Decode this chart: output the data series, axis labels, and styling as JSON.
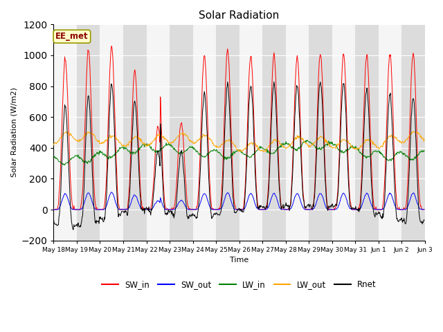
{
  "title": "Solar Radiation",
  "ylabel": "Solar Radiation (W/m2)",
  "xlabel": "Time",
  "ylim": [
    -200,
    1200
  ],
  "yticks": [
    -200,
    0,
    200,
    400,
    600,
    800,
    1000,
    1200
  ],
  "annotation_text": "EE_met",
  "annotation_color": "#8B0000",
  "annotation_bg": "#FFFFCC",
  "annotation_border": "#999900",
  "line_colors": {
    "SW_in": "red",
    "SW_out": "blue",
    "LW_in": "green",
    "LW_out": "orange",
    "Rnet": "black"
  },
  "plot_bg_light": "#f5f5f5",
  "plot_bg_dark": "#dcdcdc",
  "n_days": 16,
  "start_day": 18
}
